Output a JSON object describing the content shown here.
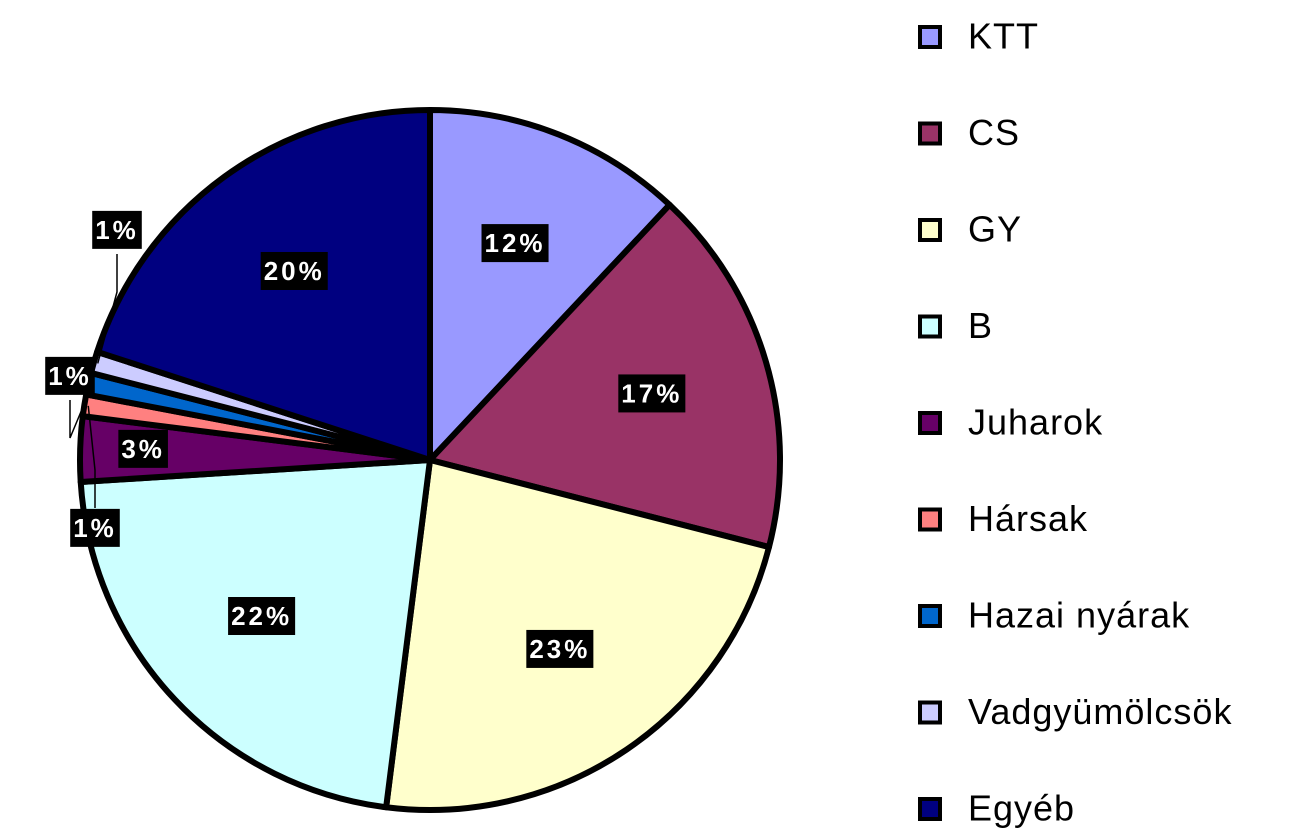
{
  "chart_data": {
    "type": "pie",
    "categories": [
      "KTT",
      "CS",
      "GY",
      "B",
      "Juharok",
      "Hársak",
      "Hazai nyárak",
      "Vadgyümölcsök",
      "Egyéb"
    ],
    "values": [
      12,
      17,
      23,
      22,
      3,
      1,
      1,
      1,
      20
    ],
    "value_labels": [
      "12%",
      "17%",
      "23%",
      "22%",
      "3%",
      "1%",
      "1%",
      "1%",
      "20%"
    ],
    "colors": [
      "#9999ff",
      "#993366",
      "#ffffcc",
      "#ccffff",
      "#660066",
      "#ff8080",
      "#0066cc",
      "#ccccff",
      "#000080"
    ],
    "legend": "right"
  }
}
